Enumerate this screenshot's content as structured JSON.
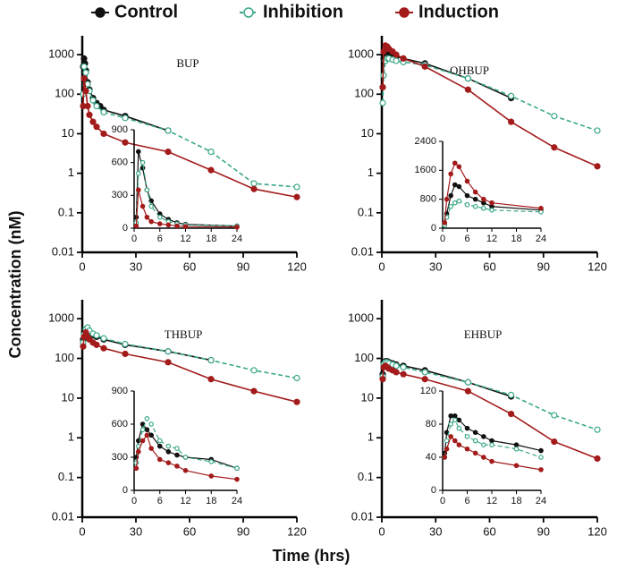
{
  "ylabel": "Concentration (nM)",
  "xlabel": "Time (hrs)",
  "chart_data": [
    {
      "type": "line",
      "title": "BUP",
      "log_y": true,
      "xlim": [
        0,
        120
      ],
      "xticks": [
        0,
        30,
        60,
        90,
        120
      ],
      "ylim": [
        0.01,
        3000
      ],
      "yticks": [
        0.01,
        0.1,
        1,
        10,
        100,
        1000
      ],
      "series": [
        {
          "name": "Control",
          "color": "#111111",
          "dashed": false,
          "open_marker": false,
          "x": [
            0.5,
            1,
            1.5,
            2,
            3,
            4,
            6,
            8,
            10,
            12,
            24,
            48
          ],
          "values": [
            500,
            800,
            600,
            400,
            200,
            130,
            80,
            60,
            50,
            40,
            28,
            12
          ]
        },
        {
          "name": "Inhibition",
          "color": "#3aa889",
          "dashed": true,
          "open_marker": true,
          "x": [
            0.5,
            1,
            2,
            3,
            4,
            6,
            8,
            12,
            24,
            48,
            72,
            96,
            120
          ],
          "values": [
            100,
            500,
            350,
            180,
            120,
            70,
            50,
            35,
            25,
            12,
            3.5,
            0.55,
            0.45
          ]
        },
        {
          "name": "Induction",
          "color": "#a31b1b",
          "dashed": false,
          "open_marker": false,
          "x": [
            0.5,
            1,
            2,
            3,
            4,
            6,
            8,
            12,
            24,
            48,
            72,
            96,
            120
          ],
          "values": [
            50,
            250,
            120,
            50,
            30,
            20,
            15,
            10,
            6,
            3.5,
            1.2,
            0.4,
            0.25
          ]
        }
      ]
    },
    {
      "type": "line",
      "log_y": false,
      "xlim": [
        0,
        24
      ],
      "xticks": [
        0,
        6,
        12,
        18,
        24
      ],
      "ylim": [
        0,
        900
      ],
      "yticks": [
        0,
        300,
        600,
        900
      ],
      "series": [
        {
          "color": "#111111",
          "dashed": false,
          "open_marker": false,
          "x": [
            0.5,
            1,
            2,
            3,
            4,
            6,
            8,
            10,
            12,
            24
          ],
          "values": [
            100,
            700,
            550,
            350,
            250,
            130,
            80,
            50,
            35,
            20
          ]
        },
        {
          "color": "#3aa889",
          "dashed": true,
          "open_marker": true,
          "x": [
            0.5,
            1,
            2,
            3,
            4,
            6,
            8,
            10,
            12,
            24
          ],
          "values": [
            50,
            500,
            600,
            350,
            200,
            100,
            60,
            40,
            30,
            20
          ]
        },
        {
          "color": "#a31b1b",
          "dashed": false,
          "open_marker": false,
          "x": [
            0.5,
            1,
            2,
            3,
            4,
            6,
            8,
            10,
            12,
            24
          ],
          "values": [
            20,
            350,
            200,
            100,
            60,
            40,
            30,
            20,
            15,
            10
          ]
        }
      ]
    },
    {
      "type": "line",
      "title": "OHBUP",
      "log_y": true,
      "xlim": [
        0,
        120
      ],
      "xticks": [
        0,
        30,
        60,
        90,
        120
      ],
      "ylim": [
        0.01,
        3000
      ],
      "yticks": [
        0.01,
        0.1,
        1,
        10,
        100,
        1000
      ],
      "series": [
        {
          "color": "#111111",
          "dashed": false,
          "open_marker": false,
          "x": [
            0.5,
            1,
            2,
            3,
            4,
            6,
            8,
            12,
            24,
            48,
            72
          ],
          "values": [
            150,
            800,
            1100,
            1100,
            1000,
            950,
            900,
            800,
            600,
            250,
            80
          ]
        },
        {
          "color": "#3aa889",
          "dashed": true,
          "open_marker": true,
          "x": [
            0.5,
            1,
            2,
            3,
            4,
            6,
            8,
            12,
            24,
            48,
            72,
            96,
            120
          ],
          "values": [
            60,
            300,
            700,
            800,
            800,
            750,
            700,
            650,
            550,
            250,
            90,
            28,
            12
          ]
        },
        {
          "color": "#a31b1b",
          "dashed": false,
          "open_marker": false,
          "x": [
            0.5,
            1,
            2,
            3,
            4,
            6,
            8,
            12,
            24,
            48,
            72,
            96,
            120
          ],
          "values": [
            150,
            1200,
            1700,
            1600,
            1400,
            1200,
            1000,
            800,
            500,
            130,
            20,
            4.5,
            1.5
          ]
        }
      ]
    },
    {
      "type": "line",
      "log_y": false,
      "xlim": [
        0,
        24
      ],
      "xticks": [
        0,
        6,
        12,
        18,
        24
      ],
      "ylim": [
        0,
        2400
      ],
      "yticks": [
        0,
        800,
        1600,
        2400
      ],
      "series": [
        {
          "color": "#111111",
          "dashed": false,
          "open_marker": false,
          "x": [
            0.5,
            1,
            2,
            3,
            4,
            6,
            8,
            10,
            12,
            24
          ],
          "values": [
            100,
            400,
            900,
            1200,
            1150,
            900,
            800,
            700,
            600,
            500
          ]
        },
        {
          "color": "#3aa889",
          "dashed": true,
          "open_marker": true,
          "x": [
            0.5,
            1,
            2,
            3,
            4,
            6,
            8,
            10,
            12,
            24
          ],
          "values": [
            80,
            300,
            600,
            700,
            750,
            650,
            600,
            550,
            500,
            450
          ]
        },
        {
          "color": "#a31b1b",
          "dashed": false,
          "open_marker": false,
          "x": [
            0.5,
            1,
            2,
            3,
            4,
            6,
            8,
            10,
            12,
            24
          ],
          "values": [
            150,
            800,
            1500,
            1800,
            1700,
            1300,
            1000,
            800,
            700,
            550
          ]
        }
      ]
    },
    {
      "type": "line",
      "title": "THBUP",
      "log_y": true,
      "xlim": [
        0,
        120
      ],
      "xticks": [
        0,
        30,
        60,
        90,
        120
      ],
      "ylim": [
        0.01,
        3000
      ],
      "yticks": [
        0.01,
        0.1,
        1,
        10,
        100,
        1000
      ],
      "series": [
        {
          "color": "#111111",
          "dashed": false,
          "open_marker": false,
          "x": [
            0.5,
            1,
            2,
            3,
            4,
            6,
            8,
            12,
            24,
            48,
            72
          ],
          "values": [
            300,
            450,
            500,
            450,
            420,
            380,
            350,
            300,
            220,
            150,
            90
          ]
        },
        {
          "color": "#3aa889",
          "dashed": true,
          "open_marker": true,
          "x": [
            0.5,
            1,
            2,
            3,
            4,
            6,
            8,
            12,
            24,
            48,
            72,
            96,
            120
          ],
          "values": [
            250,
            400,
            550,
            600,
            500,
            420,
            380,
            320,
            230,
            150,
            90,
            50,
            32
          ]
        },
        {
          "color": "#a31b1b",
          "dashed": false,
          "open_marker": false,
          "x": [
            0.5,
            1,
            2,
            3,
            4,
            6,
            8,
            12,
            24,
            48,
            72,
            96,
            120
          ],
          "values": [
            200,
            350,
            450,
            350,
            300,
            250,
            220,
            180,
            130,
            80,
            30,
            15,
            8
          ]
        }
      ]
    },
    {
      "type": "line",
      "log_y": false,
      "xlim": [
        0,
        24
      ],
      "xticks": [
        0,
        6,
        12,
        18,
        24
      ],
      "ylim": [
        0,
        900
      ],
      "yticks": [
        0,
        300,
        600,
        900
      ],
      "series": [
        {
          "color": "#111111",
          "dashed": false,
          "open_marker": false,
          "x": [
            0.5,
            1,
            2,
            3,
            4,
            6,
            8,
            10,
            12,
            18,
            24
          ],
          "values": [
            300,
            450,
            600,
            550,
            500,
            400,
            350,
            320,
            300,
            280,
            200
          ]
        },
        {
          "color": "#3aa889",
          "dashed": true,
          "open_marker": true,
          "x": [
            0.5,
            1,
            2,
            3,
            4,
            6,
            8,
            10,
            12,
            18,
            24
          ],
          "values": [
            250,
            400,
            550,
            650,
            600,
            450,
            400,
            380,
            300,
            260,
            200
          ]
        },
        {
          "color": "#a31b1b",
          "dashed": false,
          "open_marker": false,
          "x": [
            0.5,
            1,
            2,
            3,
            4,
            6,
            8,
            10,
            12,
            18,
            24
          ],
          "values": [
            200,
            350,
            450,
            500,
            380,
            280,
            250,
            220,
            180,
            130,
            100
          ]
        }
      ]
    },
    {
      "type": "line",
      "title": "EHBUP",
      "log_y": true,
      "xlim": [
        0,
        120
      ],
      "xticks": [
        0,
        30,
        60,
        90,
        120
      ],
      "ylim": [
        0.01,
        3000
      ],
      "yticks": [
        0.01,
        0.1,
        1,
        10,
        100,
        1000
      ],
      "series": [
        {
          "color": "#111111",
          "dashed": false,
          "open_marker": false,
          "x": [
            0.5,
            1,
            2,
            3,
            4,
            6,
            8,
            12,
            24,
            48,
            72
          ],
          "values": [
            40,
            80,
            85,
            85,
            80,
            75,
            70,
            65,
            50,
            25,
            11
          ]
        },
        {
          "color": "#3aa889",
          "dashed": true,
          "open_marker": true,
          "x": [
            0.5,
            1,
            2,
            3,
            4,
            6,
            8,
            12,
            24,
            48,
            72,
            96,
            120
          ],
          "values": [
            35,
            70,
            80,
            80,
            75,
            70,
            65,
            60,
            45,
            25,
            12,
            3.7,
            1.6
          ]
        },
        {
          "color": "#a31b1b",
          "dashed": false,
          "open_marker": false,
          "x": [
            0.5,
            1,
            2,
            3,
            4,
            6,
            8,
            12,
            24,
            48,
            72,
            96,
            120
          ],
          "values": [
            30,
            60,
            65,
            60,
            55,
            50,
            45,
            40,
            30,
            15,
            4,
            0.8,
            0.3
          ]
        }
      ]
    },
    {
      "type": "line",
      "log_y": false,
      "xlim": [
        0,
        24
      ],
      "xticks": [
        0,
        6,
        12,
        18,
        24
      ],
      "ylim": [
        0,
        120
      ],
      "yticks": [
        0,
        40,
        80,
        120
      ],
      "series": [
        {
          "color": "#111111",
          "dashed": false,
          "open_marker": false,
          "x": [
            0.5,
            1,
            2,
            3,
            4,
            6,
            8,
            10,
            12,
            18,
            24
          ],
          "values": [
            45,
            70,
            90,
            90,
            85,
            75,
            70,
            65,
            60,
            55,
            48
          ]
        },
        {
          "color": "#3aa889",
          "dashed": true,
          "open_marker": true,
          "x": [
            0.5,
            1,
            2,
            3,
            4,
            6,
            8,
            10,
            12,
            18,
            24
          ],
          "values": [
            40,
            60,
            80,
            85,
            75,
            65,
            60,
            55,
            55,
            50,
            40
          ]
        },
        {
          "color": "#a31b1b",
          "dashed": false,
          "open_marker": false,
          "x": [
            0.5,
            1,
            2,
            3,
            4,
            6,
            8,
            10,
            12,
            18,
            24
          ],
          "values": [
            40,
            50,
            65,
            60,
            55,
            50,
            45,
            40,
            35,
            30,
            25
          ]
        }
      ]
    }
  ]
}
